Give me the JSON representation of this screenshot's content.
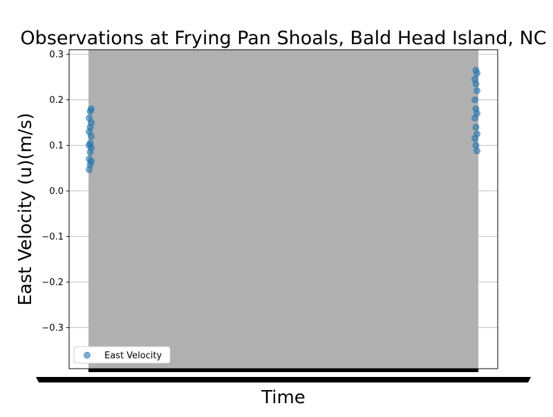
{
  "chart_data": {
    "type": "scatter",
    "title": "Observations at Frying Pan Shoals, Bald Head Island, NC",
    "xlabel": "Time",
    "ylabel": "East Velocity (u)(m/s)",
    "ylim": [
      -0.39,
      0.31
    ],
    "yticks": [
      -0.3,
      -0.2,
      -0.1,
      0.0,
      0.1,
      0.2,
      0.3
    ],
    "ytick_labels": [
      "−0.3",
      "−0.2",
      "−0.1",
      "0.0",
      "0.1",
      "0.2",
      "0.3"
    ],
    "grid": true,
    "legend": {
      "placement": "lower-left",
      "entries": [
        "East Velocity"
      ]
    },
    "colors": {
      "marker": "#1f77b4",
      "band": "#b0b0b0",
      "grid": "#b0b0b0"
    },
    "series": [
      {
        "name": "East Velocity",
        "marker": "circle",
        "left_edge": [
          0.047,
          0.058,
          0.065,
          0.07,
          0.085,
          0.095,
          0.1,
          0.105,
          0.12,
          0.13,
          0.14,
          0.15,
          0.16,
          0.175,
          0.18
        ],
        "right_edge": [
          0.088,
          0.1,
          0.115,
          0.125,
          0.14,
          0.16,
          0.17,
          0.18,
          0.2,
          0.22,
          0.235,
          0.245,
          0.258,
          0.265
        ]
      }
    ]
  }
}
